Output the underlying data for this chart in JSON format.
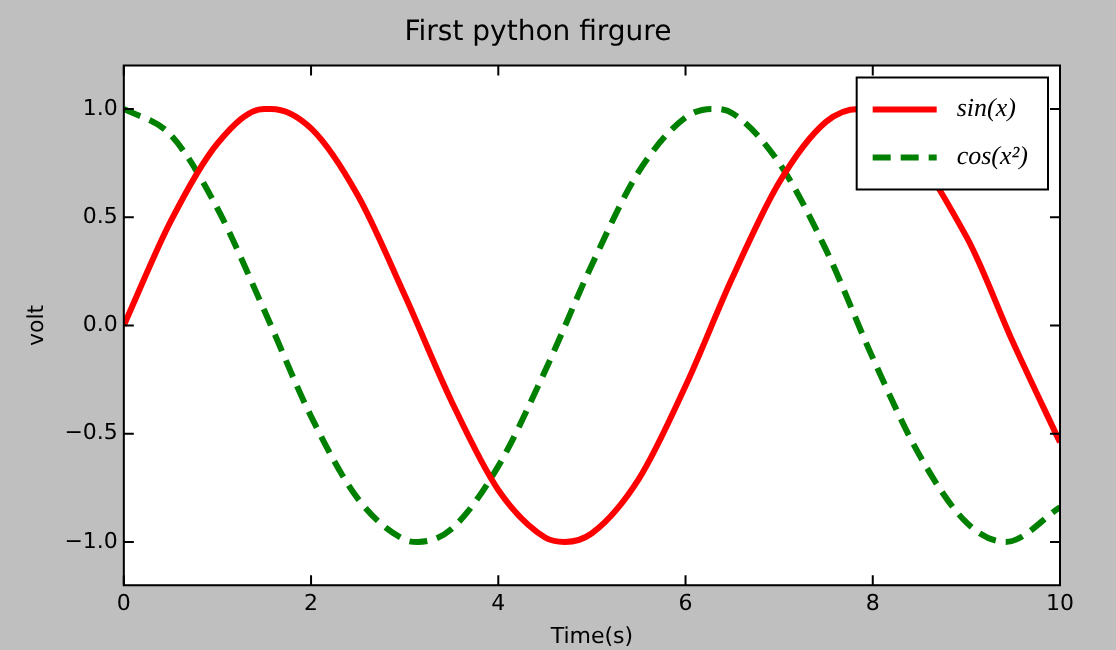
{
  "chart_data": {
    "type": "line",
    "title": "First python firgure",
    "xlabel": "Time(s)",
    "ylabel": "volt",
    "xlim": [
      0,
      10
    ],
    "xticks": [
      0,
      2,
      4,
      6,
      8,
      10
    ],
    "ylim": [
      -1.2,
      1.2
    ],
    "yticks": [
      {
        "value": -1,
        "label": "−1.0"
      },
      {
        "value": -0.5,
        "label": "−0.5"
      },
      {
        "value": 0,
        "label": "0.0"
      },
      {
        "value": 0.5,
        "label": "0.5"
      },
      {
        "value": 1,
        "label": "1.0"
      }
    ],
    "grid": false,
    "legend": "top right",
    "marker": "none",
    "series": [
      {
        "name": "sin(x)",
        "color": "#ff0000",
        "line_style": "solid",
        "x": [
          0,
          0.5,
          1,
          1.5,
          1.57,
          2,
          2.5,
          3,
          3.5,
          4,
          4.5,
          4.71,
          5,
          5.5,
          6,
          6.5,
          7,
          7.5,
          7.85,
          8,
          8.5,
          9,
          9.5,
          10
        ],
        "values": [
          0,
          0.48,
          0.84,
          1.0,
          1.0,
          0.91,
          0.6,
          0.14,
          -0.35,
          -0.76,
          -0.98,
          -1.0,
          -0.96,
          -0.71,
          -0.28,
          0.22,
          0.66,
          0.94,
          1.0,
          0.99,
          null,
          0.41,
          -0.08,
          -0.54
        ]
      },
      {
        "name": "cos(x²)",
        "color": "#008000",
        "line_style": "dashed",
        "x": [
          0,
          0.5,
          1,
          1.5,
          2,
          2.5,
          3,
          3.14,
          3.5,
          4,
          4.5,
          5,
          5.5,
          6,
          6.28,
          6.5,
          7,
          7.5,
          8,
          8.5,
          9,
          9.42,
          10
        ],
        "values": [
          1.0,
          0.88,
          0.54,
          0.07,
          -0.42,
          -0.8,
          -0.99,
          -1.0,
          -0.94,
          -0.65,
          -0.21,
          0.28,
          0.71,
          0.96,
          1.0,
          0.98,
          0.75,
          0.35,
          -0.15,
          -0.6,
          -0.91,
          -1.0,
          -0.84
        ]
      }
    ]
  }
}
